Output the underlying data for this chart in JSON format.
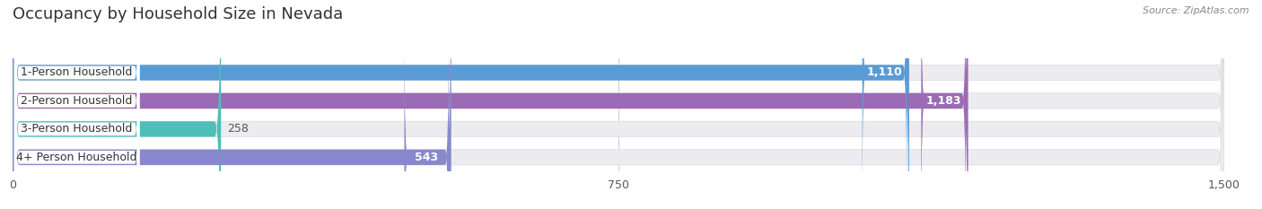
{
  "title": "Occupancy by Household Size in Nevada",
  "source": "Source: ZipAtlas.com",
  "categories": [
    "1-Person Household",
    "2-Person Household",
    "3-Person Household",
    "4+ Person Household"
  ],
  "values": [
    1110,
    1183,
    258,
    543
  ],
  "bar_colors": [
    "#5b9bd5",
    "#9b6bb5",
    "#4dbfb8",
    "#8888cc"
  ],
  "bar_labels": [
    "1,110",
    "1,183",
    "258",
    "543"
  ],
  "xlim": [
    0,
    1500
  ],
  "xticks": [
    0,
    750,
    1500
  ],
  "xtick_labels": [
    "0",
    "750",
    "1,500"
  ],
  "bg_color": "#ffffff",
  "bar_bg_color": "#ebebf0",
  "title_fontsize": 13,
  "label_fontsize": 9,
  "value_fontsize": 9,
  "bar_height": 0.55,
  "figsize": [
    14.06,
    2.33
  ],
  "dpi": 100
}
